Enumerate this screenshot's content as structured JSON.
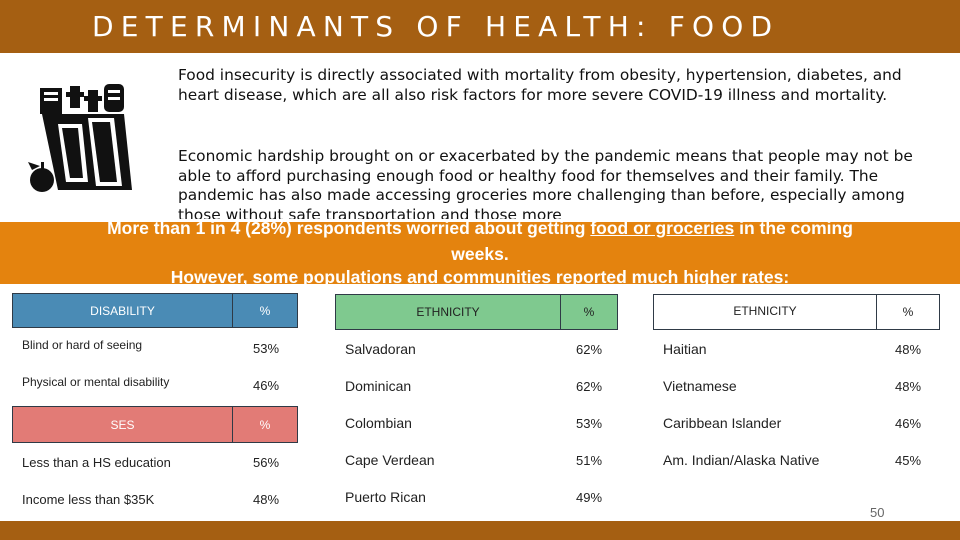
{
  "title": "DETERMINANTS OF HEALTH: FOOD",
  "intro": {
    "paragraph1": "Food insecurity is directly associated with mortality from obesity, hypertension, diabetes, and heart disease, which are all also risk factors for more severe COVID-19 illness and mortality.",
    "paragraph2": "Economic hardship brought on or exacerbated by the pandemic means that people may not be able to afford purchasing enough food or healthy food for themselves and their family. The pandemic has also made accessing groceries more challenging than before, especially among those without safe transportation and those more"
  },
  "banner": {
    "line1_a": "More than 1 in 4 (28%) respondents worried about getting ",
    "line1_u": "food or groceries",
    "line1_b": " in the coming",
    "line2": "weeks.",
    "line3": "However, some populations and communities reported much higher rates:"
  },
  "table_disability": {
    "header": {
      "label": "DISABILITY",
      "pct": "%"
    },
    "rows": [
      {
        "label": "Blind or hard of seeing",
        "pct": "53%"
      },
      {
        "label": "Physical or mental disability",
        "pct": "46%"
      }
    ]
  },
  "table_ses": {
    "header": {
      "label": "SES",
      "pct": "%"
    },
    "rows": [
      {
        "label": "Less than a HS education",
        "pct": "56%"
      },
      {
        "label": "Income less than $35K",
        "pct": "48%"
      }
    ]
  },
  "table_ethnicity1": {
    "header": {
      "label": "ETHNICITY",
      "pct": "%"
    },
    "rows": [
      {
        "label": "Salvadoran",
        "pct": "62%"
      },
      {
        "label": "Dominican",
        "pct": "62%"
      },
      {
        "label": "Colombian",
        "pct": "53%"
      },
      {
        "label": "Cape Verdean",
        "pct": "51%"
      },
      {
        "label": "Puerto Rican",
        "pct": "49%"
      }
    ]
  },
  "table_ethnicity2": {
    "header": {
      "label": "ETHNICITY",
      "pct": "%"
    },
    "rows": [
      {
        "label": "Haitian",
        "pct": "48%"
      },
      {
        "label": "Vietnamese",
        "pct": "48%"
      },
      {
        "label": "Caribbean Islander",
        "pct": "46%"
      },
      {
        "label": "Am. Indian/Alaska Native",
        "pct": "45%"
      }
    ]
  },
  "page_number": "50",
  "icon": "grocery-bag-icon",
  "colors": {
    "title_bar": "#a55f12",
    "banner": "#e4830e",
    "disability_header": "#4a8bb5",
    "ethnicity_header": "#7fc98f",
    "ses_header": "#e27b76"
  }
}
